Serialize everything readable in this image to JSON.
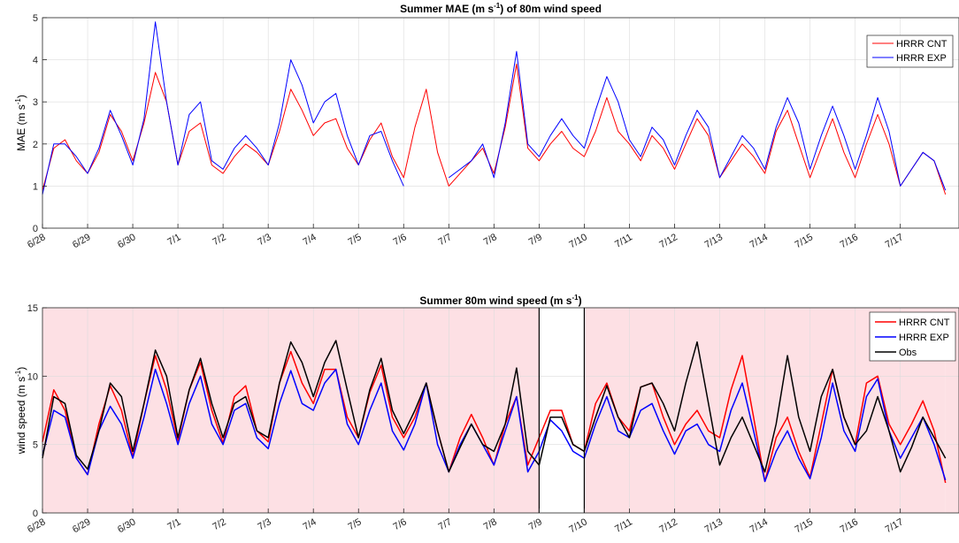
{
  "chart_data": [
    {
      "type": "line",
      "title": "Summer MAE (m s⁻¹) of 80m wind speed",
      "title_parts": [
        "Summer MAE (m s",
        "-1",
        ") of 80m wind speed"
      ],
      "xlabel": "",
      "ylabel": "MAE (m s⁻¹)",
      "ylabel_parts": [
        "MAE (m s",
        "-1",
        ")"
      ],
      "ylim": [
        0,
        5
      ],
      "yticks": [
        "0",
        "1",
        "2",
        "3",
        "4",
        "5"
      ],
      "xticks": [
        "6/28",
        "6/29",
        "6/30",
        "7/1",
        "7/2",
        "7/3",
        "7/4",
        "7/5",
        "7/6",
        "7/7",
        "7/8",
        "7/9",
        "7/10",
        "7/11",
        "7/12",
        "7/13",
        "7/14",
        "7/15",
        "7/16",
        "7/17"
      ],
      "grid": true,
      "legend_position": "top-right",
      "x": [
        0,
        0.25,
        0.5,
        0.75,
        1,
        1.25,
        1.5,
        1.75,
        2,
        2.25,
        2.5,
        2.75,
        3,
        3.25,
        3.5,
        3.75,
        4,
        4.25,
        4.5,
        4.75,
        5,
        5.25,
        5.5,
        5.75,
        6,
        6.25,
        6.5,
        6.75,
        7,
        7.25,
        7.5,
        7.75,
        8,
        8.25,
        8.5,
        8.75,
        9,
        9.25,
        9.5,
        9.75,
        10,
        10.25,
        10.5,
        10.75,
        11,
        11.25,
        11.5,
        11.75,
        12,
        12.25,
        12.5,
        12.75,
        13,
        13.25,
        13.5,
        13.75,
        14,
        14.25,
        14.5,
        14.75,
        15,
        15.25,
        15.5,
        15.75,
        16,
        16.25,
        16.5,
        16.75,
        17,
        17.25,
        17.5,
        17.75,
        18,
        18.25,
        18.5,
        18.75,
        19,
        19.25,
        19.5,
        19.75,
        20
      ],
      "series": [
        {
          "name": "HRRR CNT",
          "color": "#ff0000",
          "values": [
            0.9,
            1.9,
            2.1,
            1.6,
            1.3,
            1.8,
            2.7,
            2.3,
            1.6,
            2.5,
            3.7,
            3.0,
            1.5,
            2.3,
            2.5,
            1.5,
            1.3,
            1.7,
            2.0,
            1.8,
            1.5,
            2.3,
            3.3,
            2.8,
            2.2,
            2.5,
            2.6,
            1.9,
            1.5,
            2.1,
            2.5,
            1.7,
            1.2,
            2.4,
            3.3,
            1.8,
            1.0,
            1.3,
            1.6,
            1.9,
            1.3,
            2.4,
            3.9,
            1.9,
            1.6,
            2.0,
            2.3,
            1.9,
            1.7,
            2.3,
            3.1,
            2.3,
            2.0,
            1.6,
            2.2,
            1.9,
            1.4,
            2.0,
            2.6,
            2.2,
            1.2,
            1.6,
            2.0,
            1.7,
            1.3,
            2.3,
            2.8,
            2.0,
            1.2,
            1.9,
            2.6,
            1.8,
            1.2,
            2.0,
            2.7,
            2.0,
            1.0,
            1.4,
            1.8,
            1.6,
            0.8
          ]
        },
        {
          "name": "HRRR EXP",
          "color": "#0000ff",
          "values": [
            0.8,
            2.0,
            2.0,
            1.7,
            1.3,
            1.9,
            2.8,
            2.2,
            1.5,
            2.6,
            4.9,
            3.0,
            1.5,
            2.7,
            3.0,
            1.6,
            1.4,
            1.9,
            2.2,
            1.9,
            1.5,
            2.5,
            4.0,
            3.4,
            2.5,
            3.0,
            3.2,
            2.2,
            1.5,
            2.2,
            2.3,
            1.6,
            1.0,
            null,
            null,
            null,
            1.2,
            1.4,
            1.6,
            2.0,
            1.2,
            2.5,
            4.2,
            2.0,
            1.7,
            2.2,
            2.6,
            2.2,
            1.9,
            2.8,
            3.6,
            3.0,
            2.1,
            1.7,
            2.4,
            2.1,
            1.5,
            2.2,
            2.8,
            2.4,
            1.2,
            1.7,
            2.2,
            1.9,
            1.4,
            2.4,
            3.1,
            2.5,
            1.4,
            2.2,
            2.9,
            2.2,
            1.4,
            2.2,
            3.1,
            2.3,
            1.0,
            1.4,
            1.8,
            1.6,
            0.9
          ]
        }
      ]
    },
    {
      "type": "line",
      "title": "Summer 80m wind speed (m s⁻¹)",
      "title_parts": [
        "Summer 80m wind speed (m s",
        "-1",
        ")"
      ],
      "xlabel": "",
      "ylabel": "wind speed (m s⁻¹)",
      "ylabel_parts": [
        "wind speed (m s",
        "-1",
        ")"
      ],
      "ylim": [
        0,
        15
      ],
      "yticks": [
        "0",
        "5",
        "10",
        "15"
      ],
      "xticks": [
        "6/28",
        "6/29",
        "6/30",
        "7/1",
        "7/2",
        "7/3",
        "7/4",
        "7/5",
        "7/6",
        "7/7",
        "7/8",
        "7/9",
        "7/10",
        "7/11",
        "7/12",
        "7/13",
        "7/14",
        "7/15",
        "7/16",
        "7/17"
      ],
      "grid": true,
      "legend_position": "top-right",
      "shaded_ranges": [
        [
          0,
          11
        ],
        [
          12,
          20
        ]
      ],
      "shade_color": "#fde0e4",
      "vlines": [
        11,
        12
      ],
      "x": [
        0,
        0.25,
        0.5,
        0.75,
        1,
        1.25,
        1.5,
        1.75,
        2,
        2.25,
        2.5,
        2.75,
        3,
        3.25,
        3.5,
        3.75,
        4,
        4.25,
        4.5,
        4.75,
        5,
        5.25,
        5.5,
        5.75,
        6,
        6.25,
        6.5,
        6.75,
        7,
        7.25,
        7.5,
        7.75,
        8,
        8.25,
        8.5,
        8.75,
        9,
        9.25,
        9.5,
        9.75,
        10,
        10.25,
        10.5,
        10.75,
        11,
        11.25,
        11.5,
        11.75,
        12,
        12.25,
        12.5,
        12.75,
        13,
        13.25,
        13.5,
        13.75,
        14,
        14.25,
        14.5,
        14.75,
        15,
        15.25,
        15.5,
        15.75,
        16,
        16.25,
        16.5,
        16.75,
        17,
        17.25,
        17.5,
        17.75,
        18,
        18.25,
        18.5,
        18.75,
        19,
        19.25,
        19.5,
        19.75,
        20
      ],
      "series": [
        {
          "name": "HRRR CNT",
          "color": "#ff0000",
          "values": [
            5.2,
            9.0,
            7.5,
            4.0,
            2.8,
            6.5,
            9.3,
            7.5,
            4.1,
            8.0,
            11.5,
            9.0,
            5.3,
            9.0,
            11.0,
            7.5,
            5.1,
            8.5,
            9.3,
            6.0,
            5.2,
            9.5,
            11.8,
            9.5,
            8.0,
            10.5,
            10.5,
            7.0,
            5.5,
            8.8,
            10.8,
            7.0,
            5.5,
            7.0,
            9.5,
            6.0,
            3.0,
            5.5,
            7.2,
            5.5,
            3.5,
            6.5,
            8.5,
            3.5,
            5.5,
            7.5,
            7.5,
            5.0,
            4.5,
            8.0,
            9.5,
            7.0,
            6.0,
            9.2,
            9.5,
            7.0,
            5.0,
            6.5,
            7.5,
            6.0,
            5.5,
            9.0,
            11.5,
            7.0,
            2.3,
            5.5,
            7.0,
            4.5,
            2.6,
            6.5,
            10.5,
            7.0,
            5.0,
            9.5,
            10.0,
            6.5,
            5.0,
            6.5,
            8.2,
            6.0,
            2.2
          ]
        },
        {
          "name": "HRRR EXP",
          "color": "#0000ff",
          "values": [
            4.2,
            7.5,
            7.0,
            4.0,
            2.8,
            6.0,
            7.8,
            6.5,
            4.0,
            7.0,
            10.5,
            8.0,
            5.0,
            8.0,
            10.0,
            6.5,
            5.0,
            7.5,
            8.0,
            5.5,
            4.7,
            8.0,
            10.4,
            8.0,
            7.5,
            9.5,
            10.5,
            6.5,
            5.0,
            7.5,
            9.5,
            6.0,
            4.6,
            6.5,
            9.5,
            5.0,
            3.0,
            5.0,
            6.5,
            5.0,
            3.5,
            6.0,
            8.5,
            3.0,
            4.5,
            6.8,
            6.0,
            4.5,
            4.0,
            6.5,
            8.5,
            6.0,
            5.5,
            7.5,
            8.0,
            6.0,
            4.3,
            6.0,
            6.5,
            5.0,
            4.5,
            7.5,
            9.5,
            6.0,
            2.3,
            4.5,
            6.0,
            4.0,
            2.5,
            5.5,
            9.5,
            6.0,
            4.5,
            8.5,
            9.8,
            6.0,
            4.0,
            5.5,
            7.0,
            5.0,
            2.4
          ]
        },
        {
          "name": "Obs",
          "color": "#000000",
          "values": [
            4.0,
            8.5,
            8.0,
            4.2,
            3.2,
            6.0,
            9.5,
            8.5,
            4.5,
            8.0,
            11.9,
            10.0,
            5.5,
            9.0,
            11.3,
            8.0,
            5.5,
            8.0,
            8.5,
            6.0,
            5.5,
            9.5,
            12.5,
            11.0,
            8.5,
            11.0,
            12.6,
            9.0,
            5.5,
            9.0,
            11.3,
            7.5,
            5.8,
            7.5,
            9.5,
            6.0,
            3.0,
            4.8,
            6.5,
            5.0,
            4.5,
            6.5,
            10.6,
            4.5,
            3.5,
            7.0,
            7.0,
            5.0,
            4.5,
            7.0,
            9.3,
            7.0,
            5.5,
            9.2,
            9.5,
            8.0,
            6.0,
            9.5,
            12.5,
            8.0,
            3.5,
            5.5,
            7.0,
            5.0,
            3.0,
            6.5,
            11.5,
            7.0,
            4.5,
            8.5,
            10.5,
            7.0,
            5.0,
            6.0,
            8.5,
            6.0,
            3.0,
            4.8,
            7.0,
            5.5,
            4.0
          ]
        }
      ]
    }
  ]
}
